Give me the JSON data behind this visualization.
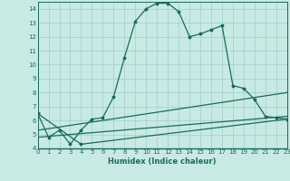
{
  "title": "",
  "xlabel": "Humidex (Indice chaleur)",
  "background_color": "#c8eae4",
  "grid_color": "#a0cccc",
  "line_color": "#1a6b5a",
  "xlim": [
    0,
    23
  ],
  "ylim": [
    4,
    14.5
  ],
  "yticks": [
    4,
    5,
    6,
    7,
    8,
    9,
    10,
    11,
    12,
    13,
    14
  ],
  "xticks": [
    0,
    1,
    2,
    3,
    4,
    5,
    6,
    7,
    8,
    9,
    10,
    11,
    12,
    13,
    14,
    15,
    16,
    17,
    18,
    19,
    20,
    21,
    22,
    23
  ],
  "line1_x": [
    0,
    1,
    2,
    3,
    4,
    5,
    6,
    7,
    8,
    9,
    10,
    11,
    12,
    13,
    14,
    15,
    16,
    17,
    18,
    19,
    20,
    21,
    22,
    23
  ],
  "line1_y": [
    6.5,
    4.8,
    5.3,
    4.3,
    5.3,
    6.1,
    6.2,
    7.7,
    10.5,
    13.1,
    14.0,
    14.4,
    14.4,
    13.8,
    12.0,
    12.2,
    12.5,
    12.8,
    8.5,
    8.3,
    7.5,
    6.3,
    6.2,
    6.1
  ],
  "line2_x": [
    0,
    4,
    23
  ],
  "line2_y": [
    6.5,
    4.3,
    6.1
  ],
  "line3_x": [
    0,
    23
  ],
  "line3_y": [
    5.3,
    8.0
  ],
  "line4_x": [
    0,
    23
  ],
  "line4_y": [
    4.8,
    6.3
  ]
}
